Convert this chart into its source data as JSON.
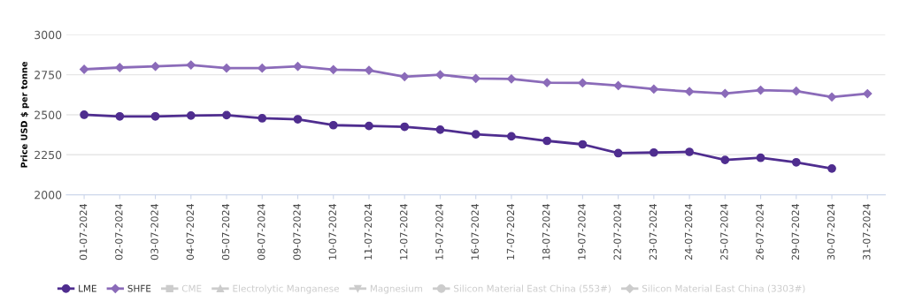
{
  "chart_data": {
    "type": "line",
    "ylabel": "Price USD $ per tonne",
    "categories": [
      "01-07-2024",
      "02-07-2024",
      "03-07-2024",
      "04-07-2024",
      "05-07-2024",
      "08-07-2024",
      "09-07-2024",
      "10-07-2024",
      "11-07-2024",
      "12-07-2024",
      "15-07-2024",
      "16-07-2024",
      "17-07-2024",
      "18-07-2024",
      "19-07-2024",
      "22-07-2024",
      "23-07-2024",
      "24-07-2024",
      "25-07-2024",
      "26-07-2024",
      "29-07-2024",
      "30-07-2024",
      "31-07-2024"
    ],
    "series": [
      {
        "name": "LME",
        "color": "#4f2d8f",
        "marker": "circle",
        "values": [
          2500,
          2490,
          2490,
          2495,
          2498,
          2478,
          2472,
          2435,
          2430,
          2425,
          2407,
          2378,
          2365,
          2337,
          2315,
          2260,
          2264,
          2268,
          2218,
          2231,
          2203,
          2164,
          null
        ]
      },
      {
        "name": "SHFE",
        "color": "#8b6bb9",
        "marker": "diamond",
        "values": [
          2784,
          2795,
          2802,
          2811,
          2791,
          2791,
          2802,
          2782,
          2778,
          2738,
          2750,
          2727,
          2724,
          2701,
          2699,
          2682,
          2660,
          2645,
          2633,
          2654,
          2648,
          2611,
          2632
        ]
      },
      {
        "name": "CME",
        "color": "#cccccc",
        "marker": "square",
        "values": [
          null,
          null,
          null,
          null,
          null,
          null,
          null,
          null,
          null,
          null,
          null,
          null,
          null,
          null,
          null,
          null,
          null,
          null,
          null,
          null,
          null,
          null,
          null
        ]
      },
      {
        "name": "Electrolytic Manganese",
        "color": "#cccccc",
        "marker": "triangle",
        "values": [
          null,
          null,
          null,
          null,
          null,
          null,
          null,
          null,
          null,
          null,
          null,
          null,
          null,
          null,
          null,
          null,
          null,
          null,
          null,
          null,
          null,
          null,
          null
        ]
      },
      {
        "name": "Magnesium",
        "color": "#cccccc",
        "marker": "triangle_down",
        "values": [
          null,
          null,
          null,
          null,
          null,
          null,
          null,
          null,
          null,
          null,
          null,
          null,
          null,
          null,
          null,
          null,
          null,
          null,
          null,
          null,
          null,
          null,
          null
        ]
      },
      {
        "name": "Silicon Material East China (553#)",
        "color": "#cccccc",
        "marker": "circle",
        "values": [
          null,
          null,
          null,
          null,
          null,
          null,
          null,
          null,
          null,
          null,
          null,
          null,
          null,
          null,
          null,
          null,
          null,
          null,
          null,
          null,
          null,
          null,
          null
        ]
      },
      {
        "name": "Silicon Material East China (3303#)",
        "color": "#cccccc",
        "marker": "diamond",
        "values": [
          null,
          null,
          null,
          null,
          null,
          null,
          null,
          null,
          null,
          null,
          null,
          null,
          null,
          null,
          null,
          null,
          null,
          null,
          null,
          null,
          null,
          null,
          null
        ]
      }
    ],
    "ylim": [
      2000,
      3000
    ],
    "yticks": [
      2000,
      2250,
      2500,
      2750,
      3000
    ],
    "grid": "y",
    "legend": "bottom"
  }
}
